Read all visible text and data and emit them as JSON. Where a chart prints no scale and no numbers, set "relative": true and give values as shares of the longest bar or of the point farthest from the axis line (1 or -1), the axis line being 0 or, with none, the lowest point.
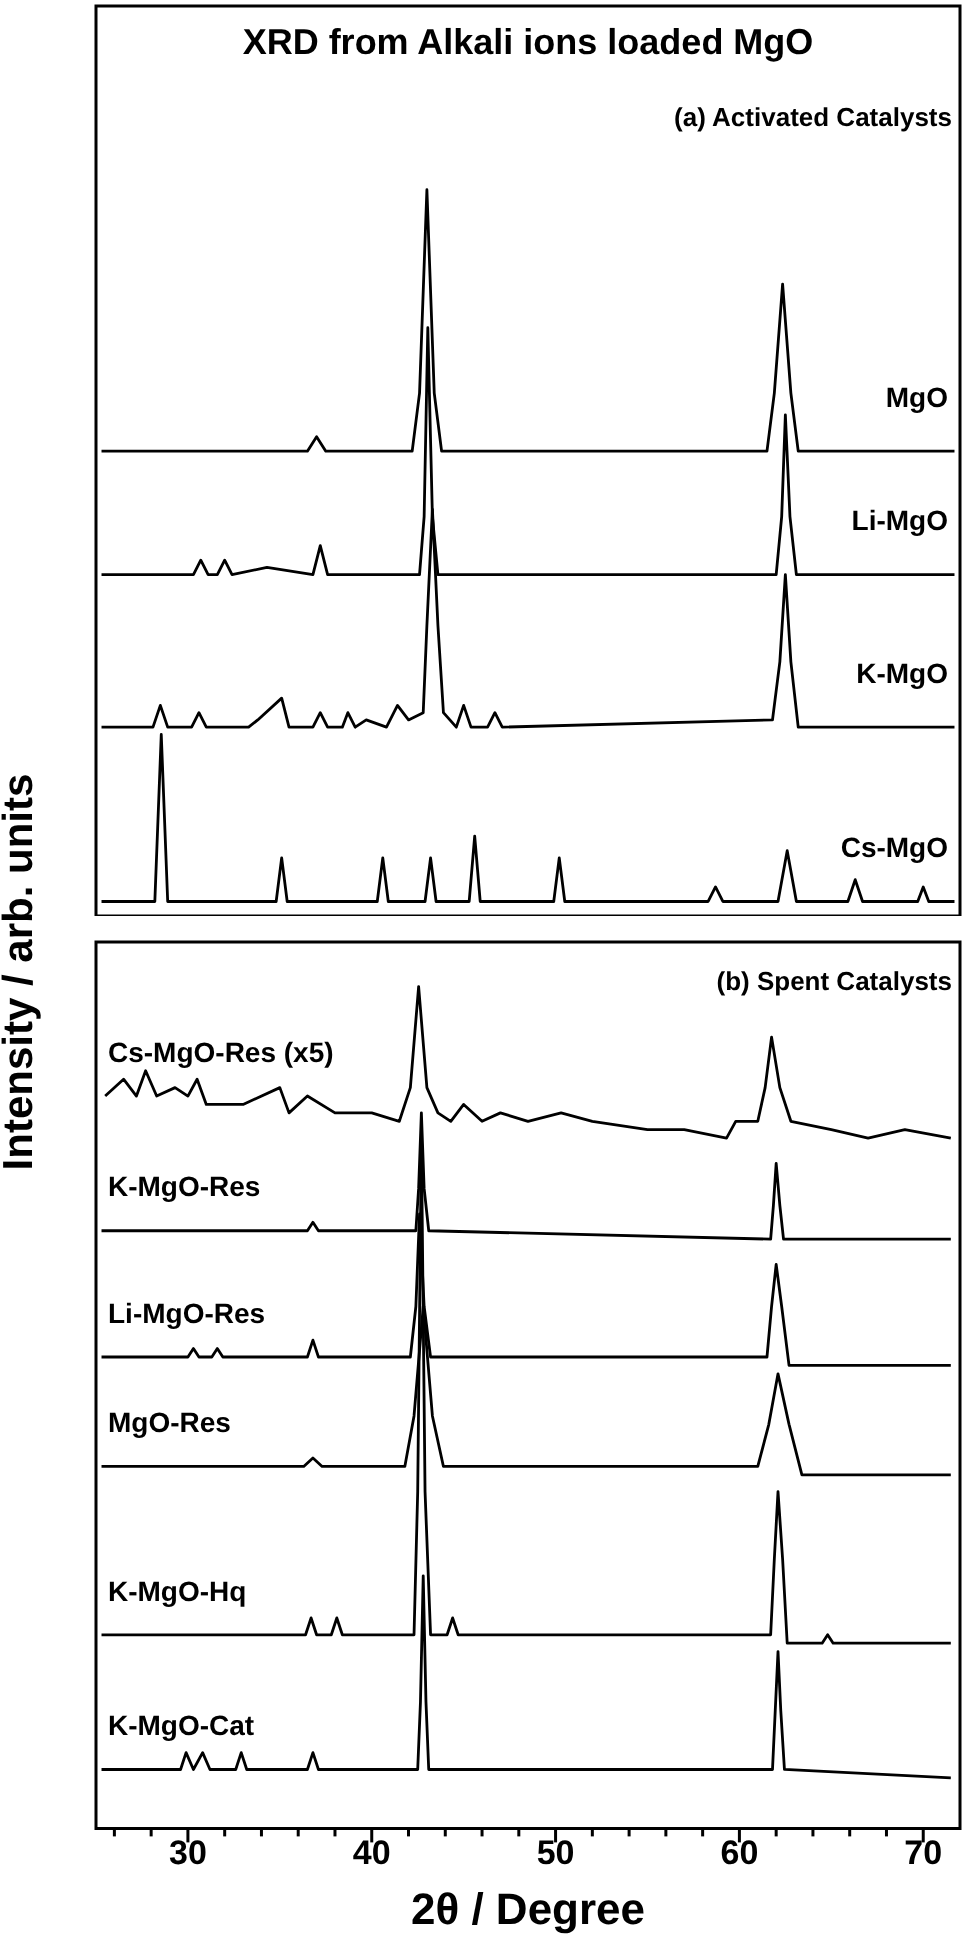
{
  "chart_data": [
    {
      "type": "line",
      "title": "XRD from Alkali ions loaded MgO",
      "ylabel": "Intensity / arb. units",
      "annotations": [
        "(a) Activated Catalysts"
      ],
      "relative": true,
      "legend": false,
      "grid": false,
      "tick_labels": false,
      "xlim": [
        25,
        72
      ],
      "xticks": [
        {
          "value": 26,
          "label": null
        },
        {
          "value": 28,
          "label": null
        },
        30,
        {
          "value": 32,
          "label": null
        },
        {
          "value": 34,
          "label": null
        },
        {
          "value": 36,
          "label": null
        },
        {
          "value": 38,
          "label": null
        },
        40,
        {
          "value": 42,
          "label": null
        },
        {
          "value": 44,
          "label": null
        },
        {
          "value": 46,
          "label": null
        },
        {
          "value": 48,
          "label": null
        },
        50,
        {
          "value": 52,
          "label": null
        },
        {
          "value": 54,
          "label": null
        },
        {
          "value": 56,
          "label": null
        },
        {
          "value": 58,
          "label": null
        },
        60,
        {
          "value": 62,
          "label": null
        },
        {
          "value": 64,
          "label": null
        },
        {
          "value": 66,
          "label": null
        },
        {
          "value": 68,
          "label": null
        },
        70
      ],
      "series": [
        {
          "name": "MgO",
          "color": "#000000",
          "x": [
            25.3,
            36.5,
            37.0,
            37.5,
            42.2,
            42.6,
            43.0,
            43.4,
            43.8,
            61.5,
            61.9,
            62.35,
            62.8,
            63.2,
            71.7
          ],
          "values": [
            0.64,
            0.64,
            0.66,
            0.64,
            0.64,
            0.72,
            1.0,
            0.72,
            0.64,
            0.64,
            0.72,
            0.87,
            0.72,
            0.64,
            0.64
          ]
        },
        {
          "name": "Li-MgO",
          "color": "#000000",
          "x": [
            25.3,
            30.3,
            30.7,
            31.1,
            31.6,
            32.0,
            32.4,
            34.3,
            36.8,
            37.2,
            37.6,
            42.6,
            42.85,
            43.05,
            43.3,
            43.6,
            62.0,
            62.3,
            62.5,
            62.75,
            63.1,
            71.7
          ],
          "values": [
            0.47,
            0.47,
            0.49,
            0.47,
            0.47,
            0.49,
            0.47,
            0.48,
            0.47,
            0.51,
            0.47,
            0.47,
            0.55,
            0.81,
            0.55,
            0.47,
            0.47,
            0.55,
            0.69,
            0.55,
            0.47,
            0.47
          ]
        },
        {
          "name": "K-MgO",
          "color": "#000000",
          "x": [
            25.3,
            28.1,
            28.5,
            28.9,
            30.2,
            30.6,
            31.0,
            33.3,
            33.8,
            35.1,
            35.5,
            36.8,
            37.2,
            37.6,
            38.4,
            38.7,
            39.1,
            39.7,
            40.8,
            41.4,
            42.0,
            42.8,
            43.0,
            43.3,
            43.6,
            43.9,
            44.6,
            45.0,
            45.4,
            46.3,
            46.7,
            47.1,
            61.8,
            62.2,
            62.5,
            62.8,
            63.2,
            71.7
          ],
          "values": [
            0.26,
            0.26,
            0.29,
            0.26,
            0.26,
            0.28,
            0.26,
            0.26,
            0.27,
            0.3,
            0.26,
            0.26,
            0.28,
            0.26,
            0.26,
            0.28,
            0.26,
            0.27,
            0.26,
            0.29,
            0.27,
            0.28,
            0.4,
            0.56,
            0.4,
            0.28,
            0.26,
            0.29,
            0.26,
            0.26,
            0.28,
            0.26,
            0.27,
            0.35,
            0.47,
            0.35,
            0.26,
            0.26
          ]
        },
        {
          "name": "Cs-MgO",
          "color": "#000000",
          "x": [
            25.3,
            28.2,
            28.55,
            28.9,
            34.8,
            35.1,
            35.4,
            40.3,
            40.6,
            40.9,
            42.9,
            43.2,
            43.5,
            45.3,
            45.6,
            45.9,
            49.9,
            50.2,
            50.5,
            58.3,
            58.7,
            59.1,
            62.1,
            62.6,
            63.1,
            65.9,
            66.3,
            66.7,
            69.7,
            70.0,
            70.3,
            71.7
          ],
          "values": [
            0.02,
            0.02,
            0.25,
            0.02,
            0.02,
            0.08,
            0.02,
            0.02,
            0.08,
            0.02,
            0.02,
            0.08,
            0.02,
            0.02,
            0.11,
            0.02,
            0.02,
            0.08,
            0.02,
            0.02,
            0.04,
            0.02,
            0.02,
            0.09,
            0.02,
            0.02,
            0.05,
            0.02,
            0.02,
            0.04,
            0.02,
            0.02
          ]
        }
      ]
    },
    {
      "type": "line",
      "xlabel": "2θ / Degree",
      "annotations": [
        "(b) Spent Catalysts"
      ],
      "relative": true,
      "legend": false,
      "grid": false,
      "tick_labels": "x",
      "xlim": [
        25,
        72
      ],
      "xticks": [
        {
          "value": 26,
          "label": null
        },
        {
          "value": 28,
          "label": null
        },
        30,
        {
          "value": 32,
          "label": null
        },
        {
          "value": 34,
          "label": null
        },
        {
          "value": 36,
          "label": null
        },
        {
          "value": 38,
          "label": null
        },
        40,
        {
          "value": 42,
          "label": null
        },
        {
          "value": 44,
          "label": null
        },
        {
          "value": 46,
          "label": null
        },
        {
          "value": 48,
          "label": null
        },
        50,
        {
          "value": 52,
          "label": null
        },
        {
          "value": 54,
          "label": null
        },
        {
          "value": 56,
          "label": null
        },
        {
          "value": 58,
          "label": null
        },
        60,
        {
          "value": 62,
          "label": null
        },
        {
          "value": 64,
          "label": null
        },
        {
          "value": 66,
          "label": null
        },
        {
          "value": 68,
          "label": null
        },
        70
      ],
      "series": [
        {
          "name": "Cs-MgO-Res (x5)",
          "color": "#000000",
          "x": [
            25.5,
            26.5,
            27.2,
            27.7,
            28.3,
            29.3,
            30.0,
            30.5,
            31.0,
            33.0,
            35.0,
            35.5,
            36.5,
            38.0,
            40.0,
            41.5,
            42.1,
            42.55,
            43.0,
            43.6,
            44.3,
            45.0,
            46.0,
            47.0,
            48.5,
            50.3,
            52.0,
            55.0,
            57.0,
            59.3,
            59.8,
            61.0,
            61.4,
            61.75,
            62.2,
            62.8,
            65.0,
            67.0,
            69.0,
            71.5
          ],
          "values": [
            0.87,
            0.89,
            0.87,
            0.9,
            0.87,
            0.88,
            0.87,
            0.89,
            0.86,
            0.86,
            0.88,
            0.85,
            0.87,
            0.85,
            0.85,
            0.84,
            0.88,
            1.0,
            0.88,
            0.85,
            0.84,
            0.86,
            0.84,
            0.85,
            0.84,
            0.85,
            0.84,
            0.83,
            0.83,
            0.82,
            0.84,
            0.84,
            0.88,
            0.94,
            0.88,
            0.84,
            0.83,
            0.82,
            0.83,
            0.82
          ]
        },
        {
          "name": "K-MgO-Res",
          "color": "#000000",
          "x": [
            25.3,
            36.5,
            36.8,
            37.1,
            42.4,
            42.55,
            42.7,
            42.85,
            43.1,
            61.7,
            61.85,
            62.0,
            62.2,
            62.4,
            71.5
          ],
          "values": [
            0.71,
            0.71,
            0.72,
            0.71,
            0.71,
            0.76,
            0.85,
            0.76,
            0.71,
            0.7,
            0.74,
            0.79,
            0.74,
            0.7,
            0.7
          ]
        },
        {
          "name": "Li-MgO-Res",
          "color": "#000000",
          "x": [
            25.3,
            30.0,
            30.3,
            30.6,
            31.3,
            31.6,
            31.9,
            36.5,
            36.8,
            37.1,
            42.1,
            42.4,
            42.6,
            42.85,
            43.2,
            61.5,
            61.75,
            62.0,
            62.3,
            62.7,
            71.5
          ],
          "values": [
            0.56,
            0.56,
            0.57,
            0.56,
            0.56,
            0.57,
            0.56,
            0.56,
            0.58,
            0.56,
            0.56,
            0.62,
            0.73,
            0.62,
            0.56,
            0.56,
            0.62,
            0.67,
            0.62,
            0.55,
            0.55
          ]
        },
        {
          "name": "MgO-Res",
          "color": "#000000",
          "x": [
            25.3,
            36.3,
            36.8,
            37.3,
            41.8,
            42.3,
            42.8,
            43.3,
            43.9,
            61.0,
            61.6,
            62.1,
            62.7,
            63.4,
            71.5
          ],
          "values": [
            0.43,
            0.43,
            0.44,
            0.43,
            0.43,
            0.49,
            0.62,
            0.49,
            0.43,
            0.43,
            0.48,
            0.54,
            0.48,
            0.42,
            0.42
          ]
        },
        {
          "name": "K-MgO-Hq",
          "color": "#000000",
          "x": [
            25.3,
            36.4,
            36.7,
            37.0,
            37.8,
            38.1,
            38.4,
            42.3,
            42.5,
            42.7,
            42.9,
            43.2,
            44.1,
            44.4,
            44.7,
            61.7,
            61.9,
            62.1,
            62.35,
            62.6,
            64.5,
            64.8,
            65.1,
            71.5
          ],
          "values": [
            0.23,
            0.23,
            0.25,
            0.23,
            0.23,
            0.25,
            0.23,
            0.23,
            0.4,
            0.82,
            0.4,
            0.23,
            0.23,
            0.25,
            0.23,
            0.23,
            0.32,
            0.4,
            0.32,
            0.22,
            0.22,
            0.23,
            0.22,
            0.22
          ]
        },
        {
          "name": "K-MgO-Cat",
          "color": "#000000",
          "x": [
            25.3,
            29.6,
            29.9,
            30.3,
            30.8,
            31.2,
            32.6,
            32.9,
            33.2,
            36.5,
            36.8,
            37.1,
            42.5,
            42.65,
            42.8,
            42.95,
            43.1,
            61.8,
            61.95,
            62.1,
            62.25,
            62.45,
            71.5
          ],
          "values": [
            0.07,
            0.07,
            0.09,
            0.07,
            0.09,
            0.07,
            0.07,
            0.09,
            0.07,
            0.07,
            0.09,
            0.07,
            0.07,
            0.15,
            0.3,
            0.15,
            0.07,
            0.07,
            0.14,
            0.21,
            0.14,
            0.07,
            0.06
          ]
        }
      ]
    }
  ]
}
